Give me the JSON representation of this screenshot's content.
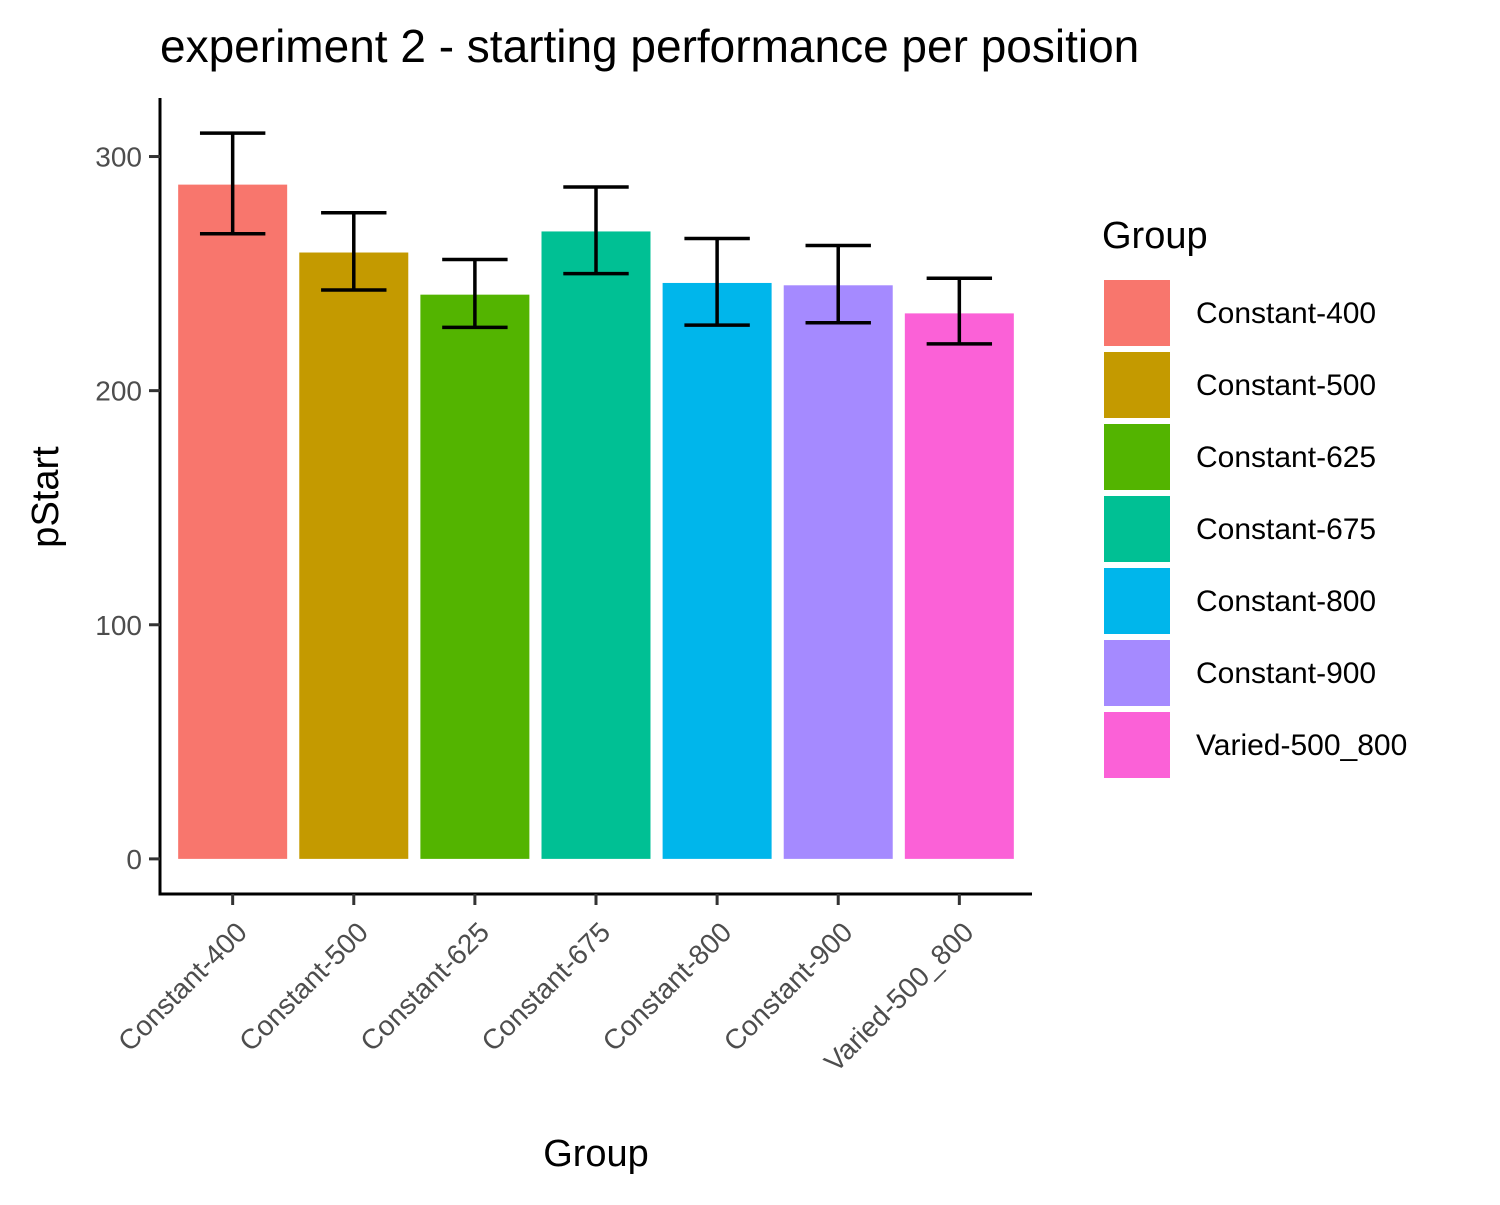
{
  "chart_data": {
    "type": "bar",
    "title": "experiment 2 - starting performance per position",
    "xlabel": "Group",
    "ylabel": "pStart",
    "categories": [
      "Constant-400",
      "Constant-500",
      "Constant-625",
      "Constant-675",
      "Constant-800",
      "Constant-900",
      "Varied-500_800"
    ],
    "values": [
      288,
      259,
      241,
      268,
      246,
      245,
      233
    ],
    "error_low": [
      267,
      243,
      227,
      250,
      228,
      229,
      220
    ],
    "error_high": [
      310,
      276,
      256,
      287,
      265,
      262,
      248
    ],
    "colors": [
      "#F8766D",
      "#C49A00",
      "#53B400",
      "#00C094",
      "#00B6EB",
      "#A58AFF",
      "#FB61D7"
    ],
    "ylim": [
      -15,
      325
    ],
    "yticks": [
      0,
      100,
      200,
      300
    ],
    "grid": false,
    "legend": {
      "title": "Group",
      "position": "right",
      "entries": [
        "Constant-400",
        "Constant-500",
        "Constant-625",
        "Constant-675",
        "Constant-800",
        "Constant-900",
        "Varied-500_800"
      ]
    }
  }
}
